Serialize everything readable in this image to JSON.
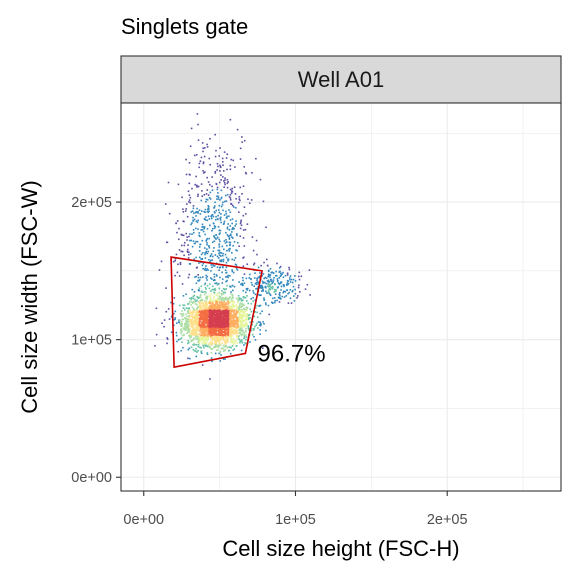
{
  "chart_data": {
    "type": "scatter",
    "title": "Singlets gate",
    "panel_label": "Well A01",
    "xlabel": "Cell size height (FSC-H)",
    "ylabel": "Cell size width (FSC-W)",
    "xlim": [
      -15000,
      275000
    ],
    "ylim": [
      -10000,
      272000
    ],
    "x_ticks": [
      {
        "value": 0,
        "label": "0e+00"
      },
      {
        "value": 100000,
        "label": "1e+05"
      },
      {
        "value": 200000,
        "label": "2e+05"
      }
    ],
    "y_ticks": [
      {
        "value": 0,
        "label": "0e+00"
      },
      {
        "value": 100000,
        "label": "1e+05"
      },
      {
        "value": 200000,
        "label": "2e+05"
      }
    ],
    "grid": true,
    "density_colormap": [
      "#5e4fa2",
      "#3288bd",
      "#66c2a5",
      "#abdda4",
      "#e6f598",
      "#fee08b",
      "#fdae61",
      "#f46d43",
      "#d53e4f"
    ],
    "cell_populations": [
      {
        "label": "main singlet cluster",
        "x_center": 48000,
        "y_center": 113000,
        "x_sd": 11000,
        "y_sd": 9000,
        "count": 2600
      },
      {
        "label": "doublet tail",
        "x_center": 45000,
        "y_center": 175000,
        "x_sd": 12000,
        "y_sd": 33000,
        "count": 700
      },
      {
        "label": "high-FSC-H shoulder",
        "x_center": 85000,
        "y_center": 140000,
        "x_sd": 9000,
        "y_sd": 7000,
        "count": 250
      }
    ],
    "gate": {
      "color": "#cc0000",
      "polygon": [
        [
          18000,
          160000
        ],
        [
          78000,
          150000
        ],
        [
          67000,
          90000
        ],
        [
          20000,
          80000
        ]
      ],
      "percentage_label": "96.7%",
      "label_position": [
        75000,
        84000
      ]
    }
  }
}
